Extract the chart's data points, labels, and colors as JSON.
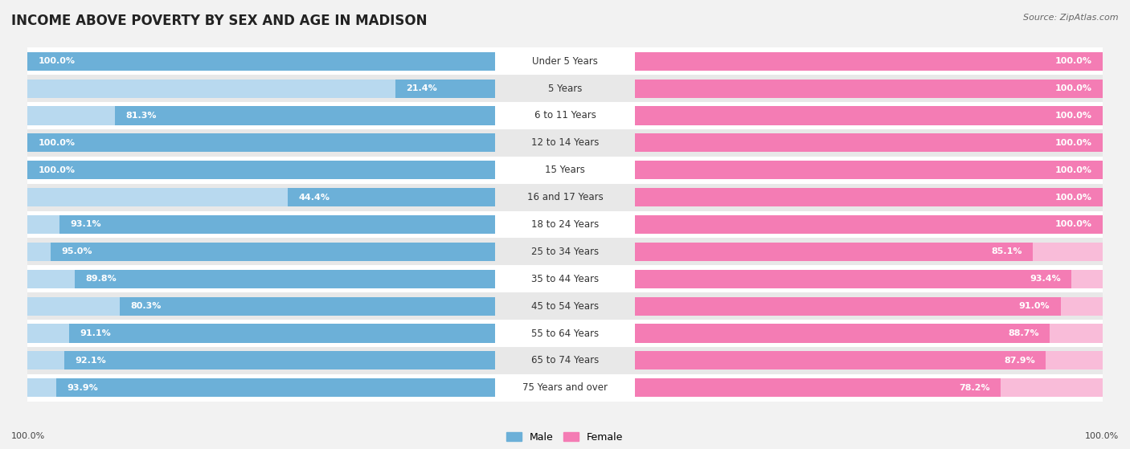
{
  "title": "INCOME ABOVE POVERTY BY SEX AND AGE IN MADISON",
  "source": "Source: ZipAtlas.com",
  "categories": [
    "Under 5 Years",
    "5 Years",
    "6 to 11 Years",
    "12 to 14 Years",
    "15 Years",
    "16 and 17 Years",
    "18 to 24 Years",
    "25 to 34 Years",
    "35 to 44 Years",
    "45 to 54 Years",
    "55 to 64 Years",
    "65 to 74 Years",
    "75 Years and over"
  ],
  "male_values": [
    100.0,
    21.4,
    81.3,
    100.0,
    100.0,
    44.4,
    93.1,
    95.0,
    89.8,
    80.3,
    91.1,
    92.1,
    93.9
  ],
  "female_values": [
    100.0,
    100.0,
    100.0,
    100.0,
    100.0,
    100.0,
    100.0,
    85.1,
    93.4,
    91.0,
    88.7,
    87.9,
    78.2
  ],
  "male_color": "#6cb0d8",
  "female_color": "#f47cb4",
  "male_color_light": "#b8d9ef",
  "female_color_light": "#f9bcd9",
  "bg_color": "#f2f2f2",
  "row_alt_color": "#e8e8e8",
  "title_fontsize": 12,
  "bar_value_fontsize": 8,
  "category_fontsize": 8.5
}
